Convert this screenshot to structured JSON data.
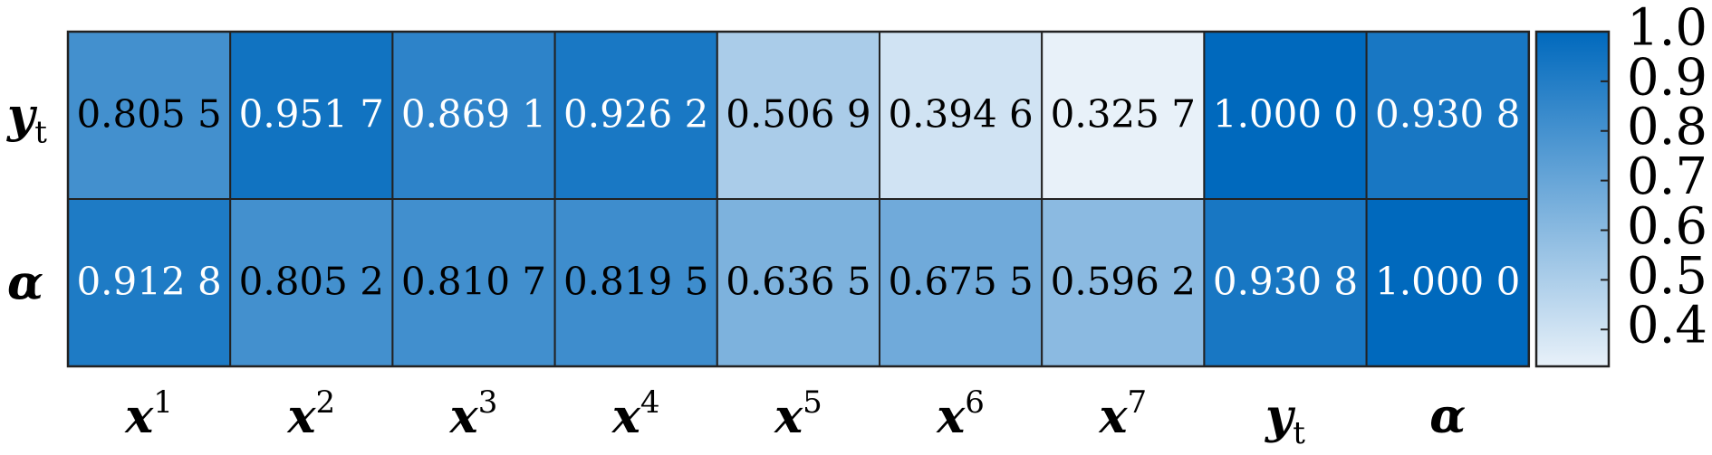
{
  "chart_data": {
    "type": "heatmap",
    "title": "",
    "xlabel": "",
    "ylabel": "",
    "x_labels": [
      {
        "base": "x",
        "sup": "1",
        "sub": ""
      },
      {
        "base": "x",
        "sup": "2",
        "sub": ""
      },
      {
        "base": "x",
        "sup": "3",
        "sub": ""
      },
      {
        "base": "x",
        "sup": "4",
        "sub": ""
      },
      {
        "base": "x",
        "sup": "5",
        "sub": ""
      },
      {
        "base": "x",
        "sup": "6",
        "sub": ""
      },
      {
        "base": "x",
        "sup": "7",
        "sub": ""
      },
      {
        "base": "y",
        "sup": "",
        "sub": "t"
      },
      {
        "base": "α",
        "sup": "",
        "sub": ""
      }
    ],
    "y_labels": [
      {
        "base": "y",
        "sup": "",
        "sub": "t"
      },
      {
        "base": "α",
        "sup": "",
        "sub": ""
      }
    ],
    "values": [
      [
        0.8055,
        0.9517,
        0.8691,
        0.9262,
        0.5069,
        0.3946,
        0.3257,
        1.0,
        0.9308
      ],
      [
        0.9128,
        0.8052,
        0.8107,
        0.8195,
        0.6365,
        0.6755,
        0.5962,
        0.9308,
        1.0
      ]
    ],
    "cell_labels": [
      [
        "0.805 5",
        "0.951 7",
        "0.869 1",
        "0.926 2",
        "0.506 9",
        "0.394 6",
        "0.325 7",
        "1.000 0",
        "0.930 8"
      ],
      [
        "0.912 8",
        "0.805 2",
        "0.810 7",
        "0.819 5",
        "0.636 5",
        "0.675 5",
        "0.596 2",
        "0.930 8",
        "1.000 0"
      ]
    ],
    "colorbar": {
      "range": [
        0.3257,
        1.0
      ],
      "ticks": [
        0.4,
        0.5,
        0.6,
        0.7,
        0.8,
        0.9,
        1.0
      ],
      "tick_labels": [
        "0.4",
        "0.5",
        "0.6",
        "0.7",
        "0.8",
        "0.9",
        "1.0"
      ],
      "color_low": "#e8f1f9",
      "color_high": "#0069bd",
      "placement": "right"
    },
    "text_color_dark": "#000000",
    "text_color_light": "#ffffff",
    "grid_color": "#222222"
  }
}
